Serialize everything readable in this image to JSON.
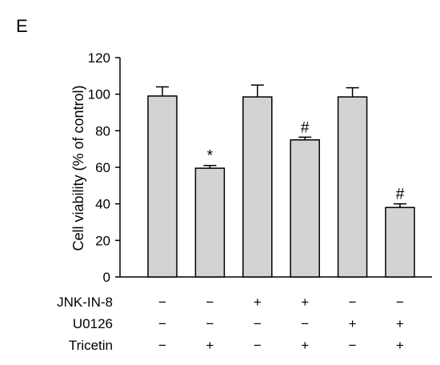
{
  "panel_label": "E",
  "chart_data": {
    "type": "bar",
    "ylabel": "Cell viability (% of control)",
    "ylim": [
      0,
      120
    ],
    "yticks": [
      0,
      20,
      40,
      60,
      80,
      100,
      120
    ],
    "bar_color": "#d3d3d3",
    "values": [
      99,
      59.5,
      98.5,
      75,
      98.5,
      38
    ],
    "errors": [
      5,
      1.5,
      6.5,
      1.5,
      5,
      2
    ],
    "annotations": [
      "",
      "*",
      "",
      "#",
      "",
      "#"
    ],
    "conditions": [
      {
        "name": "JNK-IN-8",
        "values": [
          "−",
          "−",
          "+",
          "+",
          "−",
          "−"
        ]
      },
      {
        "name": "U0126",
        "values": [
          "−",
          "−",
          "−",
          "−",
          "+",
          "+"
        ]
      },
      {
        "name": "Tricetin",
        "values": [
          "−",
          "+",
          "−",
          "+",
          "−",
          "+"
        ]
      }
    ]
  }
}
